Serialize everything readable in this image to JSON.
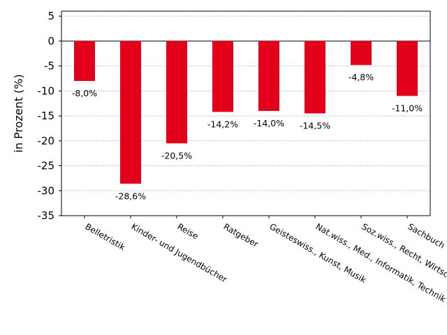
{
  "chart_data": {
    "type": "bar",
    "ylabel": "in Prozent (%)",
    "ylim": [
      -35,
      6
    ],
    "yticks": [
      5,
      0,
      -5,
      -10,
      -15,
      -20,
      -25,
      -30,
      -35
    ],
    "grid": true,
    "bar_color": "#e2001a",
    "categories": [
      "Belletristik",
      "Kinder- und Jugendbücher",
      "Reise",
      "Ratgeber",
      "Geisteswiss., Kunst, Musik",
      "Nat.wiss., Med., Informatik, Technik",
      "Soz.wiss., Recht, Wirtsch.",
      "Sachbuch"
    ],
    "values": [
      -8.0,
      -28.6,
      -20.5,
      -14.2,
      -14.0,
      -14.5,
      -4.8,
      -11.0
    ],
    "value_labels": [
      "-8,0%",
      "-28,6%",
      "-20,5%",
      "-14,2%",
      "-14,0%",
      "-14,5%",
      "-4,8%",
      "-11,0%"
    ]
  }
}
